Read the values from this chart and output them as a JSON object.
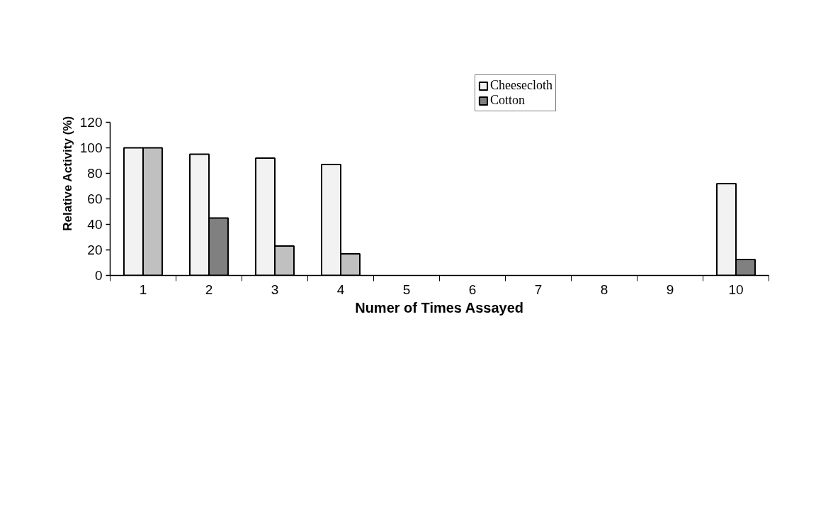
{
  "chart_data": {
    "type": "bar",
    "xlabel": "Numer of Times Assayed",
    "ylabel": "Relative Activity (%)",
    "categories": [
      "1",
      "2",
      "3",
      "4",
      "5",
      "6",
      "7",
      "8",
      "9",
      "10"
    ],
    "series": [
      {
        "name": "Cheesecloth",
        "color": "#f2f2f2",
        "values": [
          100,
          95,
          92,
          87,
          null,
          null,
          null,
          null,
          null,
          72
        ]
      },
      {
        "name": "Cotton",
        "color": "#808080",
        "colors": [
          "#c0c0c0",
          "#808080",
          "#c0c0c0",
          "#c0c0c0",
          null,
          null,
          null,
          null,
          null,
          "#808080"
        ],
        "values": [
          100,
          45,
          23,
          17,
          null,
          null,
          null,
          null,
          null,
          12.5
        ]
      }
    ],
    "ylim": [
      0,
      120
    ],
    "yticks": [
      0,
      20,
      40,
      60,
      80,
      100,
      120
    ],
    "grid": false,
    "legend": "top right"
  }
}
